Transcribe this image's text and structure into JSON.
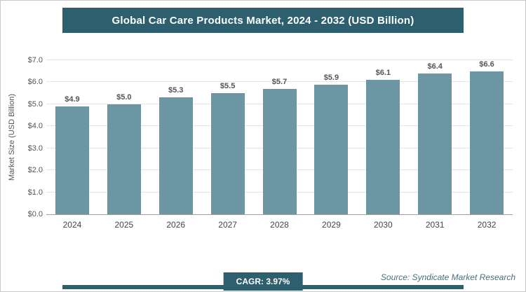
{
  "header": {
    "title": "Global Car Care Products Market, 2024 - 2032 (USD Billion)"
  },
  "chart_data": {
    "type": "bar",
    "title": "Global Car Care Products Market, 2024 - 2032 (USD Billion)",
    "categories": [
      "2024",
      "2025",
      "2026",
      "2027",
      "2028",
      "2029",
      "2030",
      "2031",
      "2032"
    ],
    "values": [
      4.9,
      5.0,
      5.3,
      5.5,
      5.7,
      5.9,
      6.1,
      6.4,
      6.6
    ],
    "value_labels": [
      "$4.9",
      "$5.0",
      "$5.3",
      "$5.5",
      "$5.7",
      "$5.9",
      "$6.1",
      "$6.4",
      "$6.6"
    ],
    "xlabel": "",
    "ylabel": "Market Size (USD Billion)",
    "ylim": [
      0,
      7
    ],
    "ytick_labels": [
      "$0.0",
      "$1.0",
      "$2.0",
      "$3.0",
      "$4.0",
      "$5.0",
      "$6.0",
      "$7.0"
    ],
    "grid": true,
    "legend": "none",
    "bar_color": "#6d96a4"
  },
  "footer": {
    "cagr_label": "CAGR: 3.97%",
    "source": "Source: Syndicate Market Research"
  },
  "colors": {
    "accent": "#2e5f6f",
    "bar": "#6d96a4",
    "gridline": "#e4e4e4"
  }
}
